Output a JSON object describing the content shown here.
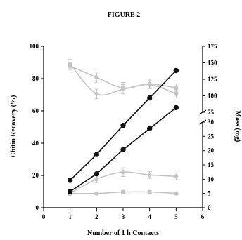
{
  "figure": {
    "title": "FIGURE 2"
  },
  "chart_data": {
    "type": "line",
    "title": "FIGURE 2",
    "xlabel": "Number of 1 h Contacts",
    "ylabel_left": "Chitin Recovery (%)",
    "ylabel_right": "Mass (mg)",
    "xlim": [
      0,
      6
    ],
    "xticks": [
      0,
      1,
      2,
      3,
      4,
      5,
      6
    ],
    "ylim_left": [
      0,
      100
    ],
    "yticks_left": [
      0,
      20,
      40,
      60,
      80,
      100
    ],
    "right_axis": {
      "broken": true,
      "lower_range": [
        0,
        30
      ],
      "lower_ticks": [
        0,
        5,
        10,
        15,
        20,
        25,
        30
      ],
      "upper_range": [
        75,
        175
      ],
      "upper_ticks": [
        75,
        100,
        125,
        150,
        175
      ]
    },
    "grid": false,
    "legend": "none",
    "series": [
      {
        "axis": "left",
        "color": "#111111",
        "marker": "circle",
        "x": [
          1,
          2,
          3,
          4,
          5
        ],
        "values": [
          17,
          33,
          51,
          68,
          85
        ],
        "error": [
          0,
          0,
          0,
          0,
          0
        ]
      },
      {
        "axis": "left",
        "color": "#111111",
        "marker": "circle",
        "x": [
          1,
          2,
          3,
          4,
          5
        ],
        "values": [
          10,
          21,
          36,
          49,
          62
        ],
        "error": [
          0,
          0,
          0,
          0,
          0
        ]
      },
      {
        "axis": "right",
        "color": "#c4c4c4",
        "marker": "circle",
        "x": [
          1,
          2,
          3,
          4,
          5
        ],
        "values": [
          148,
          103,
          110,
          117,
          103
        ],
        "error": [
          7,
          7,
          7,
          6,
          6
        ]
      },
      {
        "axis": "right",
        "color": "#c4c4c4",
        "marker": "circle",
        "x": [
          1,
          2,
          3,
          4,
          5
        ],
        "values": [
          145,
          128,
          112,
          118,
          112
        ],
        "error": [
          6,
          8,
          8,
          7,
          6
        ]
      },
      {
        "axis": "right",
        "color": "#c4c4c4",
        "marker": "circle",
        "x": [
          1,
          2,
          3,
          4,
          5
        ],
        "values": [
          5,
          10,
          12.5,
          11.5,
          11
        ],
        "error": [
          0.8,
          1.2,
          1.5,
          1.2,
          1.2
        ]
      },
      {
        "axis": "right",
        "color": "#c4c4c4",
        "marker": "circle",
        "x": [
          1,
          2,
          3,
          4,
          5
        ],
        "values": [
          5,
          5,
          5.5,
          5.5,
          5
        ],
        "error": [
          0.5,
          0.5,
          0.5,
          0.5,
          0.5
        ]
      }
    ]
  }
}
